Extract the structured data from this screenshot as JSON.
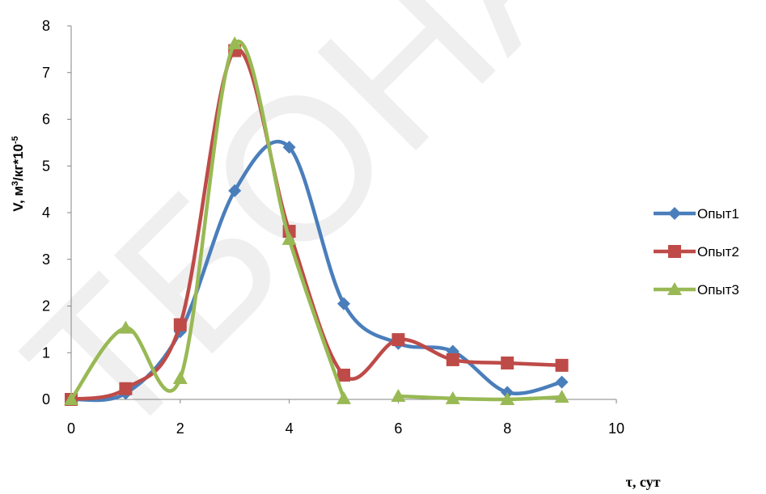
{
  "watermark": "ТБОНАХ",
  "chart_data": {
    "type": "line",
    "xlabel": "τ, сут",
    "ylabel_main": "V, м",
    "ylabel_sup1": "3",
    "ylabel_mid": "/кг*10",
    "ylabel_sup2": "-5",
    "xlim": [
      0,
      10
    ],
    "ylim": [
      0,
      8
    ],
    "xticks": [
      0,
      2,
      4,
      6,
      8,
      10
    ],
    "yticks": [
      0,
      1,
      2,
      3,
      4,
      5,
      6,
      7,
      8
    ],
    "legend_position": "right",
    "grid": false,
    "smooth": true,
    "series": [
      {
        "name": "Опыт1",
        "color": "#4a7ebb",
        "marker": "diamond",
        "x": [
          0,
          1,
          2,
          3,
          4,
          5,
          6,
          7,
          8,
          9
        ],
        "y": [
          0,
          0.13,
          1.45,
          4.47,
          5.4,
          2.05,
          1.2,
          1.03,
          0.15,
          0.37
        ]
      },
      {
        "name": "Опыт2",
        "color": "#be4b48",
        "marker": "square",
        "x": [
          0,
          1,
          2,
          3,
          4,
          5,
          6,
          7,
          8,
          9
        ],
        "y": [
          0,
          0.23,
          1.6,
          7.47,
          3.6,
          0.52,
          1.28,
          0.85,
          0.78,
          0.73
        ]
      },
      {
        "name": "Опыт3",
        "color": "#98b954",
        "marker": "triangle",
        "x": [
          0,
          1,
          2,
          3,
          4,
          5,
          6,
          7,
          8,
          9
        ],
        "y": [
          0,
          1.53,
          0.45,
          7.62,
          3.43,
          0.02,
          0.07,
          0.02,
          0.0,
          0.05
        ],
        "segments": [
          [
            0,
            5
          ],
          [
            6,
            9
          ]
        ]
      }
    ]
  }
}
